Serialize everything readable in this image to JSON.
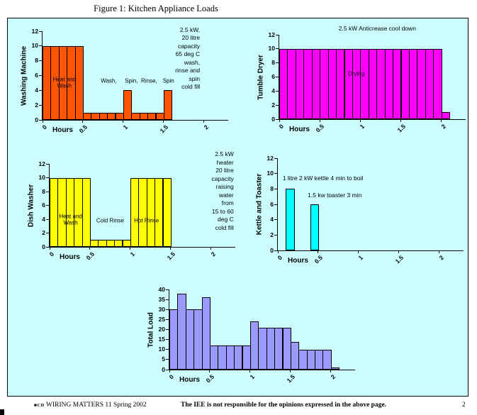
{
  "page": {
    "title": "Figure 1:  Kitchen Appliance Loads",
    "footer": {
      "logo": "■CD",
      "left": "WIRING MATTERS 11 Spring 2002",
      "center": "The IEE is not responsible for the opinions expressed in the above page.",
      "page_number": "2"
    }
  },
  "colors": {
    "figure_bg": "#CCFFFF",
    "bar_border": "#000000",
    "washing_machine": "#FF5500",
    "tumble_dryer": "#FF00FF",
    "dish_washer": "#FFFF00",
    "kettle_toaster": "#00FFFF",
    "total_load": "#9999FF"
  },
  "chart_data": [
    {
      "id": "washing-machine",
      "type": "bar",
      "ylabel": "Washing Machine",
      "xlabel": "Hours",
      "ylim": [
        0,
        12
      ],
      "ytick_step": 2,
      "xlim": [
        0,
        2.3
      ],
      "xticks": [
        0,
        0.5,
        1,
        1.5,
        2
      ],
      "bar_width_hours": 0.1,
      "x_start": 0,
      "values": [
        10,
        10,
        10,
        10,
        10,
        1,
        1,
        1,
        1,
        1,
        4,
        1,
        1,
        1,
        1,
        4
      ],
      "color": "#FF5500",
      "annotations": [
        {
          "text": "2.5 kW, 20 litre capacity\n65 deg C wash, rinse and spin\ncold fill",
          "x": 1.95,
          "y": 12.7,
          "align": "right"
        }
      ],
      "labels": [
        {
          "text": "Heat and\nWash",
          "x": 0.27,
          "y": 5.0
        },
        {
          "text": "Wash,",
          "x": 0.82,
          "y": 5.3
        },
        {
          "text": "Spin,",
          "x": 1.1,
          "y": 5.3
        },
        {
          "text": "Rinse,",
          "x": 1.32,
          "y": 5.3
        },
        {
          "text": "Spin",
          "x": 1.56,
          "y": 5.3
        }
      ]
    },
    {
      "id": "tumble-dryer",
      "type": "bar",
      "ylabel": "Tumble Dryer",
      "xlabel": "Hours",
      "ylim": [
        0,
        12
      ],
      "ytick_step": 2,
      "xlim": [
        0,
        2.3
      ],
      "xticks": [
        0,
        0.5,
        1,
        1.5,
        2
      ],
      "bar_width_hours": 0.1,
      "x_start": 0,
      "values": [
        10,
        10,
        10,
        10,
        10,
        10,
        10,
        10,
        10,
        10,
        10,
        10,
        10,
        10,
        10,
        10,
        10,
        10,
        10,
        10,
        1
      ],
      "color": "#FF00FF",
      "annotations": [
        {
          "text": "2.5 kW Anticrease cool down",
          "x": 1.21,
          "y": 13.4,
          "align": "center"
        }
      ],
      "labels": [
        {
          "text": "Drying",
          "x": 0.95,
          "y": 6.5
        }
      ]
    },
    {
      "id": "dish-washer",
      "type": "bar",
      "ylabel": "Dish Washer",
      "xlabel": "Hours",
      "ylim": [
        0,
        12
      ],
      "ytick_step": 2,
      "xlim": [
        0,
        2.3
      ],
      "xticks": [
        0,
        0.5,
        1,
        1.5,
        2
      ],
      "bar_width_hours": 0.1,
      "x_start": 0,
      "values": [
        10,
        10,
        10,
        10,
        10,
        1,
        1,
        1,
        1,
        1,
        10,
        10,
        10,
        10,
        10
      ],
      "color": "#FFFF00",
      "annotations": [
        {
          "text": "2.5 kW heater\n20 litre capacity raising\nwater from\n15 to 60 deg C\ncold fill",
          "x": 2.28,
          "y": 13.9,
          "align": "right"
        }
      ],
      "labels": [
        {
          "text": "Heat and\nWash",
          "x": 0.26,
          "y": 3.9
        },
        {
          "text": "Cold Rinse",
          "x": 0.75,
          "y": 3.8
        },
        {
          "text": "Hot Rinse",
          "x": 1.2,
          "y": 3.8
        }
      ]
    },
    {
      "id": "kettle-toaster",
      "type": "bar",
      "ylabel": "Kettle and Toaster",
      "xlabel": "Hours",
      "ylim": [
        0,
        12
      ],
      "ytick_step": 2,
      "xlim": [
        0,
        2.3
      ],
      "xticks": [
        0,
        0.5,
        1,
        1.5,
        2
      ],
      "bar_width_hours": 0.1,
      "x_start": 0,
      "values": [
        0,
        8,
        0,
        0,
        6
      ],
      "color": "#00FFFF",
      "annotations": [
        {
          "text": "1 litre 2 kW kettle 4 min to boil",
          "x": 0.06,
          "y": 9.9,
          "align": "left"
        },
        {
          "text": "1.5 kw toaster 3 min",
          "x": 0.37,
          "y": 7.7,
          "align": "left"
        }
      ],
      "labels": []
    },
    {
      "id": "total-load",
      "type": "bar",
      "ylabel": "Total Load",
      "xlabel": "Hours",
      "ylim": [
        0,
        40
      ],
      "ytick_step": 5,
      "xlim": [
        0,
        2.3
      ],
      "xticks": [
        0,
        0.5,
        1,
        1.5,
        2
      ],
      "bar_width_hours": 0.1,
      "x_start": 0,
      "values": [
        30,
        38,
        30,
        30,
        36,
        12,
        12,
        12,
        12,
        12,
        24,
        21,
        21,
        21,
        21,
        14,
        10,
        10,
        10,
        10,
        1
      ],
      "color": "#9999FF",
      "annotations": [],
      "labels": []
    }
  ]
}
